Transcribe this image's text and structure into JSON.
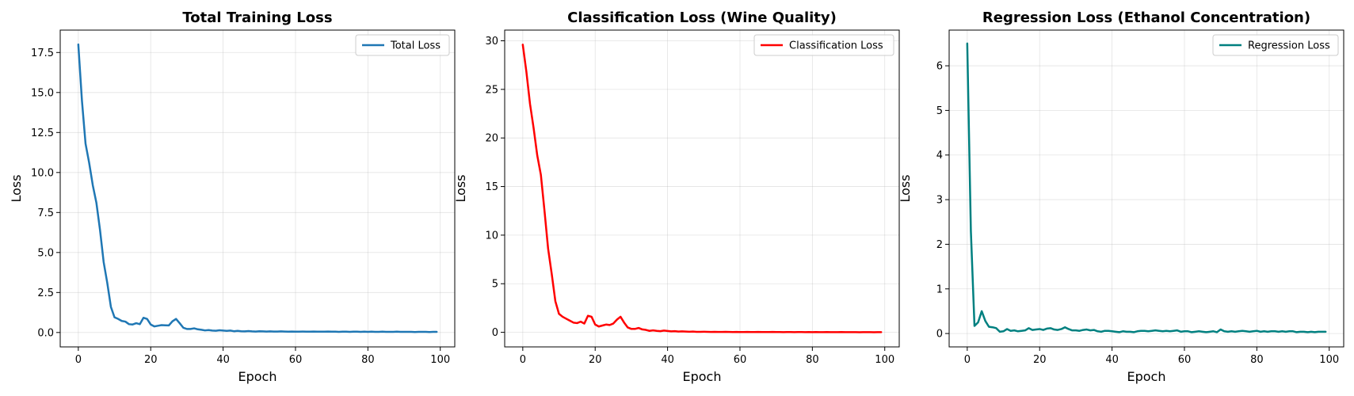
{
  "chart_data": [
    {
      "type": "line",
      "title": "Total Training Loss",
      "xlabel": "Epoch",
      "ylabel": "Loss",
      "xlim": [
        -5,
        104
      ],
      "ylim": [
        -0.9,
        18.9
      ],
      "xticks": [
        0,
        20,
        40,
        60,
        80,
        100
      ],
      "yticks": [
        0.0,
        2.5,
        5.0,
        7.5,
        10.0,
        12.5,
        15.0,
        17.5
      ],
      "ytick_labels": [
        "0.0",
        "2.5",
        "5.0",
        "7.5",
        "10.0",
        "12.5",
        "15.0",
        "17.5"
      ],
      "grid": true,
      "legend_position": "top-right",
      "series": [
        {
          "name": "Total Loss",
          "color": "#1f77b4",
          "x_start": 0,
          "values": [
            18.0,
            14.5,
            11.8,
            10.6,
            9.2,
            8.1,
            6.4,
            4.4,
            3.1,
            1.6,
            0.95,
            0.85,
            0.72,
            0.68,
            0.52,
            0.5,
            0.58,
            0.52,
            0.92,
            0.85,
            0.5,
            0.38,
            0.42,
            0.46,
            0.45,
            0.44,
            0.7,
            0.85,
            0.58,
            0.3,
            0.22,
            0.22,
            0.26,
            0.2,
            0.17,
            0.13,
            0.15,
            0.12,
            0.11,
            0.14,
            0.12,
            0.1,
            0.12,
            0.08,
            0.1,
            0.08,
            0.07,
            0.09,
            0.07,
            0.06,
            0.08,
            0.07,
            0.06,
            0.07,
            0.06,
            0.06,
            0.07,
            0.06,
            0.05,
            0.06,
            0.05,
            0.05,
            0.06,
            0.05,
            0.05,
            0.06,
            0.05,
            0.05,
            0.05,
            0.06,
            0.05,
            0.05,
            0.04,
            0.05,
            0.05,
            0.04,
            0.05,
            0.05,
            0.04,
            0.05,
            0.04,
            0.05,
            0.04,
            0.04,
            0.05,
            0.04,
            0.04,
            0.04,
            0.05,
            0.04,
            0.04,
            0.04,
            0.04,
            0.03,
            0.04,
            0.04,
            0.04,
            0.03,
            0.04,
            0.04
          ]
        }
      ]
    },
    {
      "type": "line",
      "title": "Classification Loss (Wine Quality)",
      "xlabel": "Epoch",
      "ylabel": "Loss",
      "xlim": [
        -5,
        104
      ],
      "ylim": [
        -1.5,
        31.1
      ],
      "xticks": [
        0,
        20,
        40,
        60,
        80,
        100
      ],
      "yticks": [
        0,
        5,
        10,
        15,
        20,
        25,
        30
      ],
      "ytick_labels": [
        "0",
        "5",
        "10",
        "15",
        "20",
        "25",
        "30"
      ],
      "grid": true,
      "legend_position": "top-right",
      "series": [
        {
          "name": "Classification Loss",
          "color": "#ff0000",
          "x_start": 0,
          "values": [
            29.6,
            26.8,
            23.5,
            21.0,
            18.2,
            16.2,
            12.5,
            8.6,
            6.0,
            3.2,
            1.9,
            1.6,
            1.4,
            1.2,
            1.0,
            0.95,
            1.1,
            0.9,
            1.7,
            1.6,
            0.8,
            0.6,
            0.7,
            0.8,
            0.75,
            0.9,
            1.3,
            1.6,
            1.0,
            0.5,
            0.35,
            0.35,
            0.45,
            0.3,
            0.25,
            0.15,
            0.2,
            0.15,
            0.12,
            0.18,
            0.14,
            0.1,
            0.12,
            0.08,
            0.1,
            0.08,
            0.06,
            0.08,
            0.05,
            0.05,
            0.06,
            0.05,
            0.04,
            0.05,
            0.04,
            0.04,
            0.05,
            0.04,
            0.03,
            0.04,
            0.03,
            0.03,
            0.04,
            0.03,
            0.03,
            0.04,
            0.03,
            0.03,
            0.03,
            0.04,
            0.03,
            0.03,
            0.02,
            0.03,
            0.03,
            0.02,
            0.03,
            0.03,
            0.02,
            0.03,
            0.02,
            0.03,
            0.02,
            0.02,
            0.03,
            0.02,
            0.02,
            0.02,
            0.03,
            0.02,
            0.02,
            0.02,
            0.02,
            0.01,
            0.02,
            0.02,
            0.02,
            0.01,
            0.02,
            0.02
          ]
        }
      ]
    },
    {
      "type": "line",
      "title": "Regression Loss (Ethanol Concentration)",
      "xlabel": "Epoch",
      "ylabel": "Loss",
      "xlim": [
        -5,
        104
      ],
      "ylim": [
        -0.3,
        6.8
      ],
      "xticks": [
        0,
        20,
        40,
        60,
        80,
        100
      ],
      "yticks": [
        0,
        1,
        2,
        3,
        4,
        5,
        6
      ],
      "ytick_labels": [
        "0",
        "1",
        "2",
        "3",
        "4",
        "5",
        "6"
      ],
      "grid": true,
      "legend_position": "top-right",
      "series": [
        {
          "name": "Regression Loss",
          "color": "#008080",
          "x_start": 0,
          "values": [
            6.5,
            2.3,
            0.17,
            0.25,
            0.5,
            0.28,
            0.15,
            0.14,
            0.12,
            0.04,
            0.05,
            0.1,
            0.06,
            0.07,
            0.05,
            0.06,
            0.07,
            0.12,
            0.08,
            0.09,
            0.1,
            0.08,
            0.11,
            0.12,
            0.09,
            0.08,
            0.1,
            0.14,
            0.1,
            0.07,
            0.07,
            0.06,
            0.08,
            0.09,
            0.07,
            0.08,
            0.05,
            0.04,
            0.06,
            0.06,
            0.05,
            0.04,
            0.03,
            0.05,
            0.04,
            0.04,
            0.03,
            0.05,
            0.06,
            0.06,
            0.05,
            0.06,
            0.07,
            0.06,
            0.05,
            0.06,
            0.05,
            0.06,
            0.07,
            0.04,
            0.05,
            0.05,
            0.03,
            0.04,
            0.05,
            0.04,
            0.03,
            0.04,
            0.05,
            0.03,
            0.09,
            0.05,
            0.04,
            0.05,
            0.04,
            0.05,
            0.06,
            0.05,
            0.04,
            0.05,
            0.06,
            0.04,
            0.05,
            0.04,
            0.05,
            0.05,
            0.04,
            0.05,
            0.04,
            0.05,
            0.05,
            0.03,
            0.04,
            0.04,
            0.03,
            0.04,
            0.03,
            0.04,
            0.04,
            0.04
          ]
        }
      ]
    }
  ]
}
